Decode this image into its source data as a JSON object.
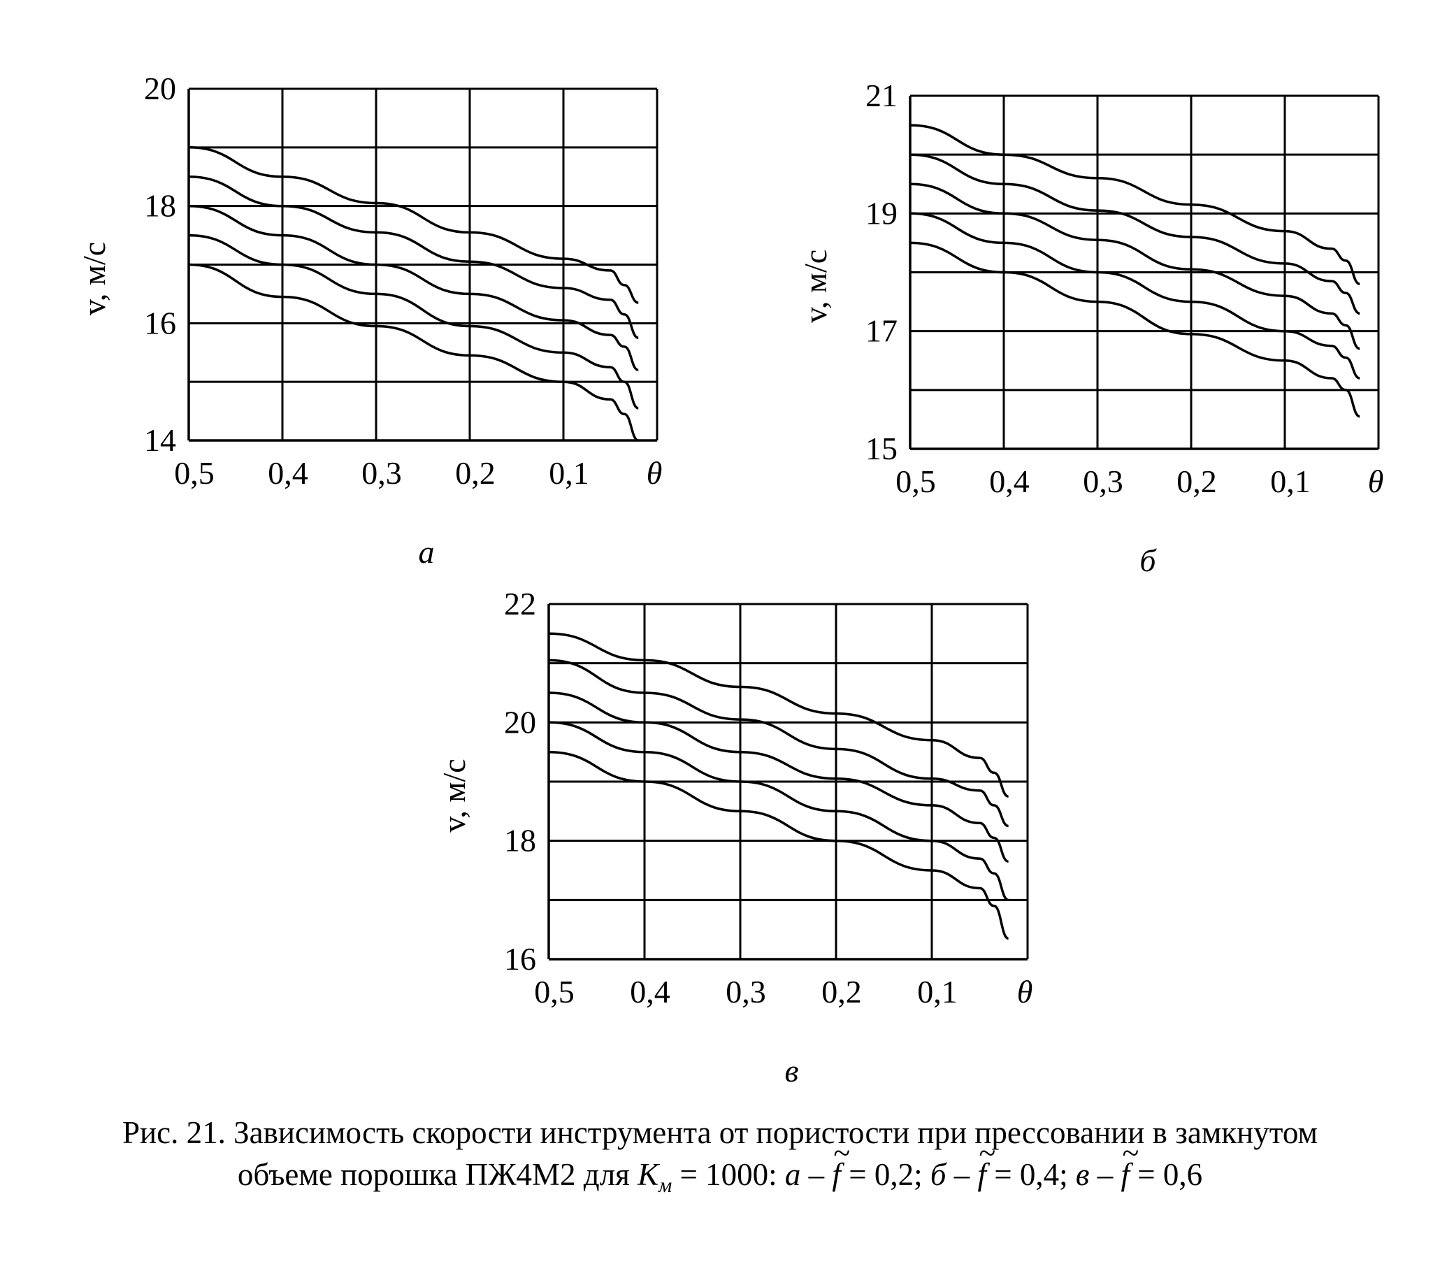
{
  "figure": {
    "caption_line1": "Рис. 21. Зависимость скорости инструмента от пористости при прессовании в замкнутом",
    "caption_line2_prefix": "объеме порошка ПЖ4М2 для ",
    "caption_K": "K",
    "caption_K_sub": "м",
    "caption_eq": " = 1000: ",
    "caption_parts": [
      {
        "letter": "а",
        "dash": " – ",
        "f": "f",
        "value": " = 0,2",
        "sep": "; "
      },
      {
        "letter": "б",
        "dash": " – ",
        "f": "f",
        "value": " = 0,4",
        "sep": "; "
      },
      {
        "letter": "в",
        "dash": " – ",
        "f": "f",
        "value": " = 0,6",
        "sep": ""
      }
    ]
  },
  "chart_data": [
    {
      "type": "line",
      "panel_label": "а",
      "ylabel": "v, м/с",
      "xlabel": "θ",
      "x_tick_labels": [
        "0,5",
        "0,4",
        "0,3",
        "0,2",
        "0,1"
      ],
      "x_ticks": [
        0.5,
        0.4,
        0.3,
        0.2,
        0.1
      ],
      "xlim": [
        0.5,
        0.0
      ],
      "y_tick_labels": [
        "20",
        "18",
        "16",
        "14"
      ],
      "y_ticks": [
        20,
        18,
        16,
        14
      ],
      "ylim": [
        14,
        20
      ],
      "grid": true,
      "series": [
        {
          "x": [
            0.5,
            0.4,
            0.3,
            0.2,
            0.1,
            0.05,
            0.035,
            0.02
          ],
          "y": [
            19.0,
            18.5,
            18.05,
            17.55,
            17.1,
            16.9,
            16.65,
            16.35
          ]
        },
        {
          "x": [
            0.5,
            0.4,
            0.3,
            0.2,
            0.1,
            0.05,
            0.035,
            0.02
          ],
          "y": [
            18.5,
            18.0,
            17.55,
            17.05,
            16.6,
            16.4,
            16.15,
            15.75
          ]
        },
        {
          "x": [
            0.5,
            0.4,
            0.3,
            0.2,
            0.1,
            0.05,
            0.035,
            0.02
          ],
          "y": [
            18.0,
            17.5,
            17.0,
            16.5,
            16.05,
            15.8,
            15.6,
            15.2
          ]
        },
        {
          "x": [
            0.5,
            0.4,
            0.3,
            0.2,
            0.1,
            0.05,
            0.035,
            0.02
          ],
          "y": [
            17.5,
            17.0,
            16.5,
            15.95,
            15.5,
            15.25,
            15.0,
            14.55
          ]
        },
        {
          "x": [
            0.5,
            0.4,
            0.3,
            0.2,
            0.1,
            0.05,
            0.035,
            0.02
          ],
          "y": [
            17.0,
            16.45,
            15.95,
            15.45,
            15.0,
            14.7,
            14.45,
            14.0
          ]
        }
      ]
    },
    {
      "type": "line",
      "panel_label": "б",
      "ylabel": "v, м/с",
      "xlabel": "θ",
      "x_tick_labels": [
        "0,5",
        "0,4",
        "0,3",
        "0,2",
        "0,1"
      ],
      "x_ticks": [
        0.5,
        0.4,
        0.3,
        0.2,
        0.1
      ],
      "xlim": [
        0.5,
        0.0
      ],
      "y_tick_labels": [
        "21",
        "19",
        "17",
        "15"
      ],
      "y_ticks": [
        21,
        19,
        17,
        15
      ],
      "ylim": [
        15,
        21
      ],
      "grid": true,
      "series": [
        {
          "x": [
            0.5,
            0.4,
            0.3,
            0.2,
            0.1,
            0.05,
            0.035,
            0.02
          ],
          "y": [
            20.5,
            20.0,
            19.6,
            19.15,
            18.7,
            18.4,
            18.2,
            17.8
          ]
        },
        {
          "x": [
            0.5,
            0.4,
            0.3,
            0.2,
            0.1,
            0.05,
            0.035,
            0.02
          ],
          "y": [
            20.0,
            19.5,
            19.05,
            18.6,
            18.15,
            17.85,
            17.65,
            17.3
          ]
        },
        {
          "x": [
            0.5,
            0.4,
            0.3,
            0.2,
            0.1,
            0.05,
            0.035,
            0.02
          ],
          "y": [
            19.5,
            19.0,
            18.55,
            18.05,
            17.6,
            17.3,
            17.1,
            16.7
          ]
        },
        {
          "x": [
            0.5,
            0.4,
            0.3,
            0.2,
            0.1,
            0.05,
            0.035,
            0.02
          ],
          "y": [
            19.0,
            18.5,
            18.0,
            17.5,
            17.0,
            16.75,
            16.55,
            16.2
          ]
        },
        {
          "x": [
            0.5,
            0.4,
            0.3,
            0.2,
            0.1,
            0.05,
            0.035,
            0.02
          ],
          "y": [
            18.5,
            18.0,
            17.5,
            16.95,
            16.5,
            16.2,
            16.0,
            15.55
          ]
        }
      ]
    },
    {
      "type": "line",
      "panel_label": "в",
      "ylabel": "v, м/с",
      "xlabel": "θ",
      "x_tick_labels": [
        "0,5",
        "0,4",
        "0,3",
        "0,2",
        "0,1"
      ],
      "x_ticks": [
        0.5,
        0.4,
        0.3,
        0.2,
        0.1
      ],
      "xlim": [
        0.5,
        0.0
      ],
      "y_tick_labels": [
        "22",
        "20",
        "18",
        "16"
      ],
      "y_ticks": [
        22,
        20,
        18,
        16
      ],
      "ylim": [
        16,
        22
      ],
      "grid": true,
      "series": [
        {
          "x": [
            0.5,
            0.4,
            0.3,
            0.2,
            0.1,
            0.05,
            0.035,
            0.02
          ],
          "y": [
            21.5,
            21.05,
            20.6,
            20.15,
            19.7,
            19.4,
            19.15,
            18.75
          ]
        },
        {
          "x": [
            0.5,
            0.4,
            0.3,
            0.2,
            0.1,
            0.05,
            0.035,
            0.02
          ],
          "y": [
            21.05,
            20.5,
            20.05,
            19.55,
            19.05,
            18.85,
            18.6,
            18.25
          ]
        },
        {
          "x": [
            0.5,
            0.4,
            0.3,
            0.2,
            0.1,
            0.05,
            0.035,
            0.02
          ],
          "y": [
            20.5,
            20.0,
            19.5,
            19.05,
            18.6,
            18.3,
            18.05,
            17.65
          ]
        },
        {
          "x": [
            0.5,
            0.4,
            0.3,
            0.2,
            0.1,
            0.05,
            0.035,
            0.02
          ],
          "y": [
            20.0,
            19.5,
            19.0,
            18.5,
            18.0,
            17.7,
            17.45,
            17.0
          ]
        },
        {
          "x": [
            0.5,
            0.4,
            0.3,
            0.2,
            0.1,
            0.05,
            0.035,
            0.02
          ],
          "y": [
            19.5,
            19.0,
            18.5,
            18.0,
            17.5,
            17.2,
            16.9,
            16.35
          ]
        }
      ]
    }
  ]
}
